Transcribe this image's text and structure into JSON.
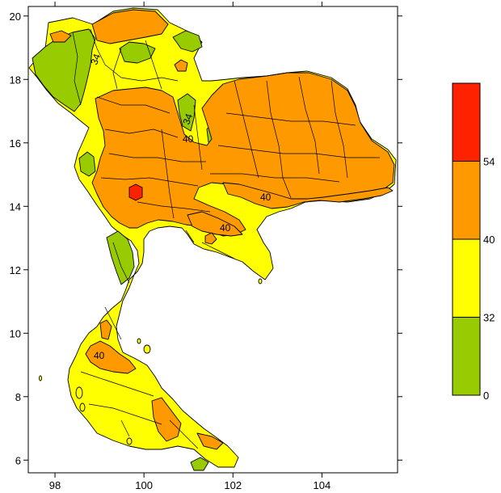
{
  "map": {
    "x_axis": {
      "ticks": [
        "98",
        "100",
        "102",
        "104"
      ],
      "range": [
        97.4,
        105.7
      ]
    },
    "y_axis": {
      "ticks": [
        "6",
        "8",
        "10",
        "12",
        "14",
        "16",
        "18",
        "20"
      ],
      "range": [
        5.6,
        20.3
      ]
    },
    "contour_labels": [
      "34",
      "34",
      "40",
      "40",
      "40",
      "40"
    ],
    "legend": {
      "breaks": [
        "0",
        "32",
        "40",
        "54"
      ],
      "colors": [
        "#99cc00",
        "#ffff00",
        "#ff9900",
        "#ff2200"
      ]
    }
  }
}
